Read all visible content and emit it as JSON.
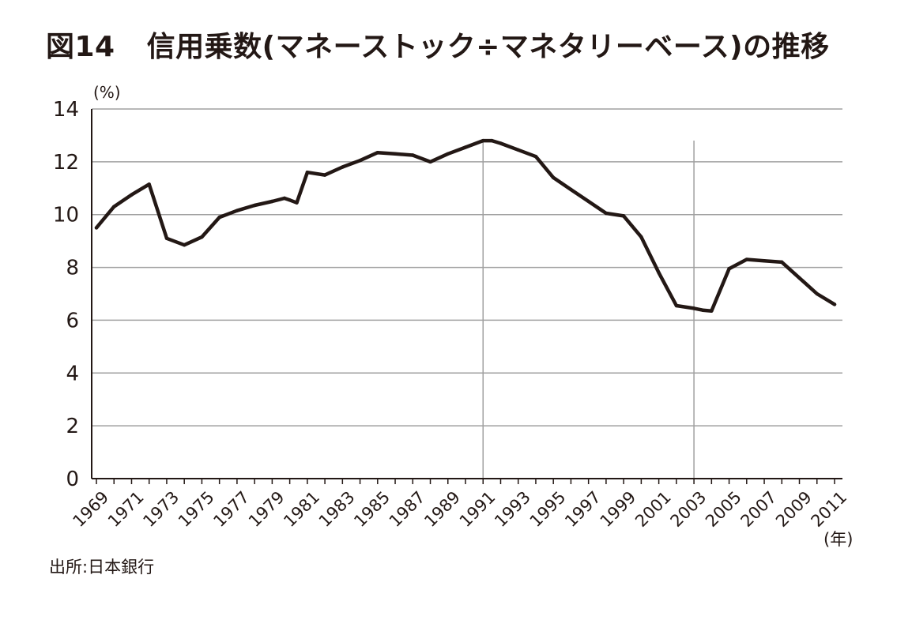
{
  "header": {
    "figure_number": "図14",
    "title": "信用乗数(マネーストック÷マネタリーベース)の推移"
  },
  "footer": {
    "source": "出所:日本銀行"
  },
  "chart_data": {
    "type": "line",
    "title": "信用乗数(マネーストック÷マネタリーベース)の推移",
    "ylabel": "(%)",
    "xlabel": "(年)",
    "ylim": [
      0,
      14
    ],
    "yticks": [
      "0",
      "2",
      "4",
      "6",
      "8",
      "10",
      "12",
      "14"
    ],
    "xlim": [
      1969,
      2011
    ],
    "xticks": [
      "1969",
      "1971",
      "1973",
      "1975",
      "1977",
      "1979",
      "1981",
      "1983",
      "1985",
      "1987",
      "1989",
      "1991",
      "1993",
      "1995",
      "1997",
      "1999",
      "2001",
      "2003",
      "2005",
      "2007",
      "2009",
      "2011"
    ],
    "grid": "horizontal",
    "reference_lines_x": [
      1991,
      2003
    ],
    "colors": {
      "line": "#231815",
      "grid": "#a0a0a0",
      "axis": "#231815"
    },
    "series": [
      {
        "x": [
          1969,
          1970,
          1971,
          1972,
          1973,
          1974,
          1975,
          1976,
          1977,
          1978,
          1979,
          1979.7,
          1980,
          1980.4,
          1981,
          1982,
          1983,
          1984,
          1985,
          1986,
          1987,
          1988,
          1989,
          1990,
          1991,
          1991.5,
          1992,
          1993,
          1994,
          1995,
          1996,
          1997,
          1998,
          1999,
          2000,
          2001,
          2002,
          2003,
          2003.5,
          2004,
          2005,
          2006,
          2007,
          2008,
          2009,
          2010,
          2011
        ],
        "y": [
          9.5,
          10.3,
          10.75,
          11.15,
          9.1,
          8.85,
          9.15,
          9.9,
          10.15,
          10.35,
          10.5,
          10.62,
          10.55,
          10.45,
          11.6,
          11.5,
          11.8,
          12.05,
          12.35,
          12.3,
          12.25,
          12.0,
          12.3,
          12.55,
          12.8,
          12.8,
          12.7,
          12.45,
          12.2,
          11.4,
          10.95,
          10.5,
          10.05,
          9.95,
          9.15,
          7.8,
          6.55,
          6.45,
          6.38,
          6.35,
          7.95,
          8.3,
          8.25,
          8.2,
          7.6,
          7.0,
          6.6
        ]
      }
    ]
  }
}
